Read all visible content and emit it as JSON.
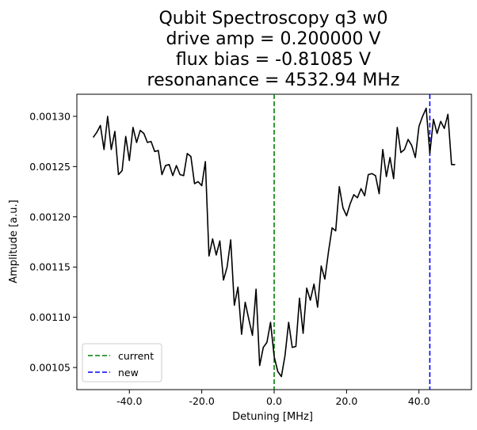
{
  "chart_data": {
    "type": "line",
    "title_lines": [
      "Qubit Spectroscopy q3 w0",
      "drive amp = 0.200000 V",
      "flux bias = -0.81085 V",
      "resonanance = 4532.94 MHz"
    ],
    "xlabel": "Detuning [MHz]",
    "ylabel": "Amplitude [a.u.]",
    "xlim": [
      -54.5,
      54.5
    ],
    "ylim": [
      0.001028,
      0.001322
    ],
    "x_ticks": [
      -40.0,
      -20.0,
      0.0,
      20.0,
      40.0
    ],
    "x_tick_labels": [
      "-40.0",
      "-20.0",
      "0.0",
      "20.0",
      "40.0"
    ],
    "y_ticks": [
      0.00105,
      0.0011,
      0.00115,
      0.0012,
      0.00125,
      0.0013
    ],
    "y_tick_labels": [
      "0.00105",
      "0.00110",
      "0.00115",
      "0.00120",
      "0.00125",
      "0.00130"
    ],
    "grid": false,
    "legend_position": "lower-left",
    "series": [
      {
        "color": "#000000",
        "x": [
          -50,
          -49,
          -48,
          -47,
          -46,
          -45,
          -44,
          -43,
          -42,
          -41,
          -40,
          -39,
          -38,
          -37,
          -36,
          -35,
          -34,
          -33,
          -32,
          -31,
          -30,
          -29,
          -28,
          -27,
          -26,
          -25,
          -24,
          -23,
          -22,
          -21,
          -20,
          -19,
          -18,
          -17,
          -16,
          -15,
          -14,
          -13,
          -12,
          -11,
          -10,
          -9,
          -8,
          -7,
          -6,
          -5,
          -4,
          -3,
          -2,
          -1,
          0,
          1,
          2,
          3,
          4,
          5,
          6,
          7,
          8,
          9,
          10,
          11,
          12,
          13,
          14,
          15,
          16,
          17,
          18,
          19,
          20,
          21,
          22,
          23,
          24,
          25,
          26,
          27,
          28,
          29,
          30,
          31,
          32,
          33,
          34,
          35,
          36,
          37,
          38,
          39,
          40,
          41,
          42,
          43,
          44,
          45,
          46,
          47,
          48,
          49,
          50
        ],
        "values": [
          0.001279,
          0.001284,
          0.001291,
          0.001267,
          0.0013,
          0.001267,
          0.001285,
          0.001242,
          0.001246,
          0.00128,
          0.001256,
          0.001289,
          0.001274,
          0.001286,
          0.001283,
          0.001274,
          0.001275,
          0.001265,
          0.001266,
          0.001242,
          0.001251,
          0.001252,
          0.001241,
          0.001251,
          0.001242,
          0.001241,
          0.001263,
          0.00126,
          0.001233,
          0.001235,
          0.001231,
          0.001255,
          0.001161,
          0.001178,
          0.001162,
          0.001176,
          0.001137,
          0.00115,
          0.001177,
          0.001112,
          0.00113,
          0.001083,
          0.001115,
          0.001098,
          0.001082,
          0.001128,
          0.001052,
          0.00107,
          0.001075,
          0.001095,
          0.001061,
          0.001046,
          0.001041,
          0.001062,
          0.001095,
          0.00107,
          0.001071,
          0.001119,
          0.001084,
          0.001129,
          0.001117,
          0.001133,
          0.00111,
          0.001151,
          0.001138,
          0.001165,
          0.001189,
          0.001186,
          0.00123,
          0.001209,
          0.001201,
          0.001213,
          0.001222,
          0.001219,
          0.001228,
          0.001221,
          0.001242,
          0.001243,
          0.001241,
          0.001223,
          0.001267,
          0.00124,
          0.001259,
          0.001238,
          0.001289,
          0.001264,
          0.001267,
          0.001277,
          0.001271,
          0.001259,
          0.00129,
          0.0013,
          0.001308,
          0.001263,
          0.001297,
          0.001283,
          0.001295,
          0.001288,
          0.001302,
          0.001252,
          0.001252
        ]
      }
    ],
    "vlines": [
      {
        "name": "current",
        "x": 0.0,
        "color": "#008000",
        "dash": "dashed"
      },
      {
        "name": "new",
        "x": 43.0,
        "color": "#0000ff",
        "dash": "dashed"
      }
    ],
    "colors": {
      "axes": "#000000",
      "background": "#ffffff"
    }
  }
}
